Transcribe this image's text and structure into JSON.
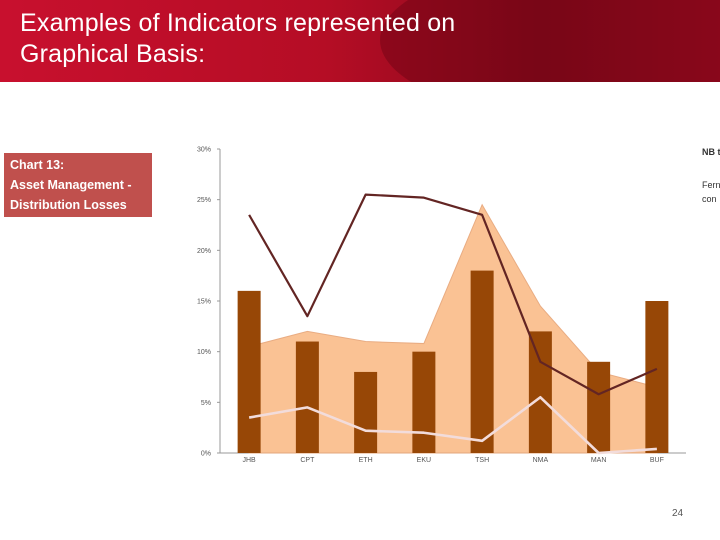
{
  "slide": {
    "title": "Examples of Indicators represented on\nGraphical Basis:",
    "page_number": "24"
  },
  "chart_label": {
    "line1": "Chart 13:",
    "line2": "Asset Management -",
    "line3": "Distribution Losses"
  },
  "side_text": {
    "line1": "NB t",
    "line2": "Fern",
    "line3": "con"
  },
  "colors": {
    "header_red": "#c8102e",
    "label_bg": "#c0504d",
    "bar": "#974706",
    "area": "#fabf8f",
    "line_dark": "#632523",
    "line_light": "#f2dcdb"
  },
  "chart_data": {
    "type": "bar",
    "categories": [
      "JHB",
      "CPT",
      "ETH",
      "EKU",
      "TSH",
      "NMA",
      "MAN",
      "BUF"
    ],
    "ylim": [
      0,
      30
    ],
    "yticks": [
      "0%",
      "5%",
      "10%",
      "15%",
      "20%",
      "25%",
      "30%"
    ],
    "series": [
      {
        "type": "bar",
        "values": [
          16,
          11,
          8,
          10,
          18,
          12,
          9,
          15
        ]
      },
      {
        "type": "area",
        "values": [
          10.5,
          12,
          11,
          10.8,
          24.5,
          14.5,
          8,
          6.5
        ]
      },
      {
        "type": "line",
        "values": [
          23.5,
          13.5,
          25.5,
          25.2,
          23.5,
          9,
          5.8,
          8.3
        ]
      },
      {
        "type": "line",
        "values": [
          3.5,
          4.5,
          2.2,
          2,
          1.2,
          5.5,
          0,
          0.4
        ]
      }
    ]
  }
}
